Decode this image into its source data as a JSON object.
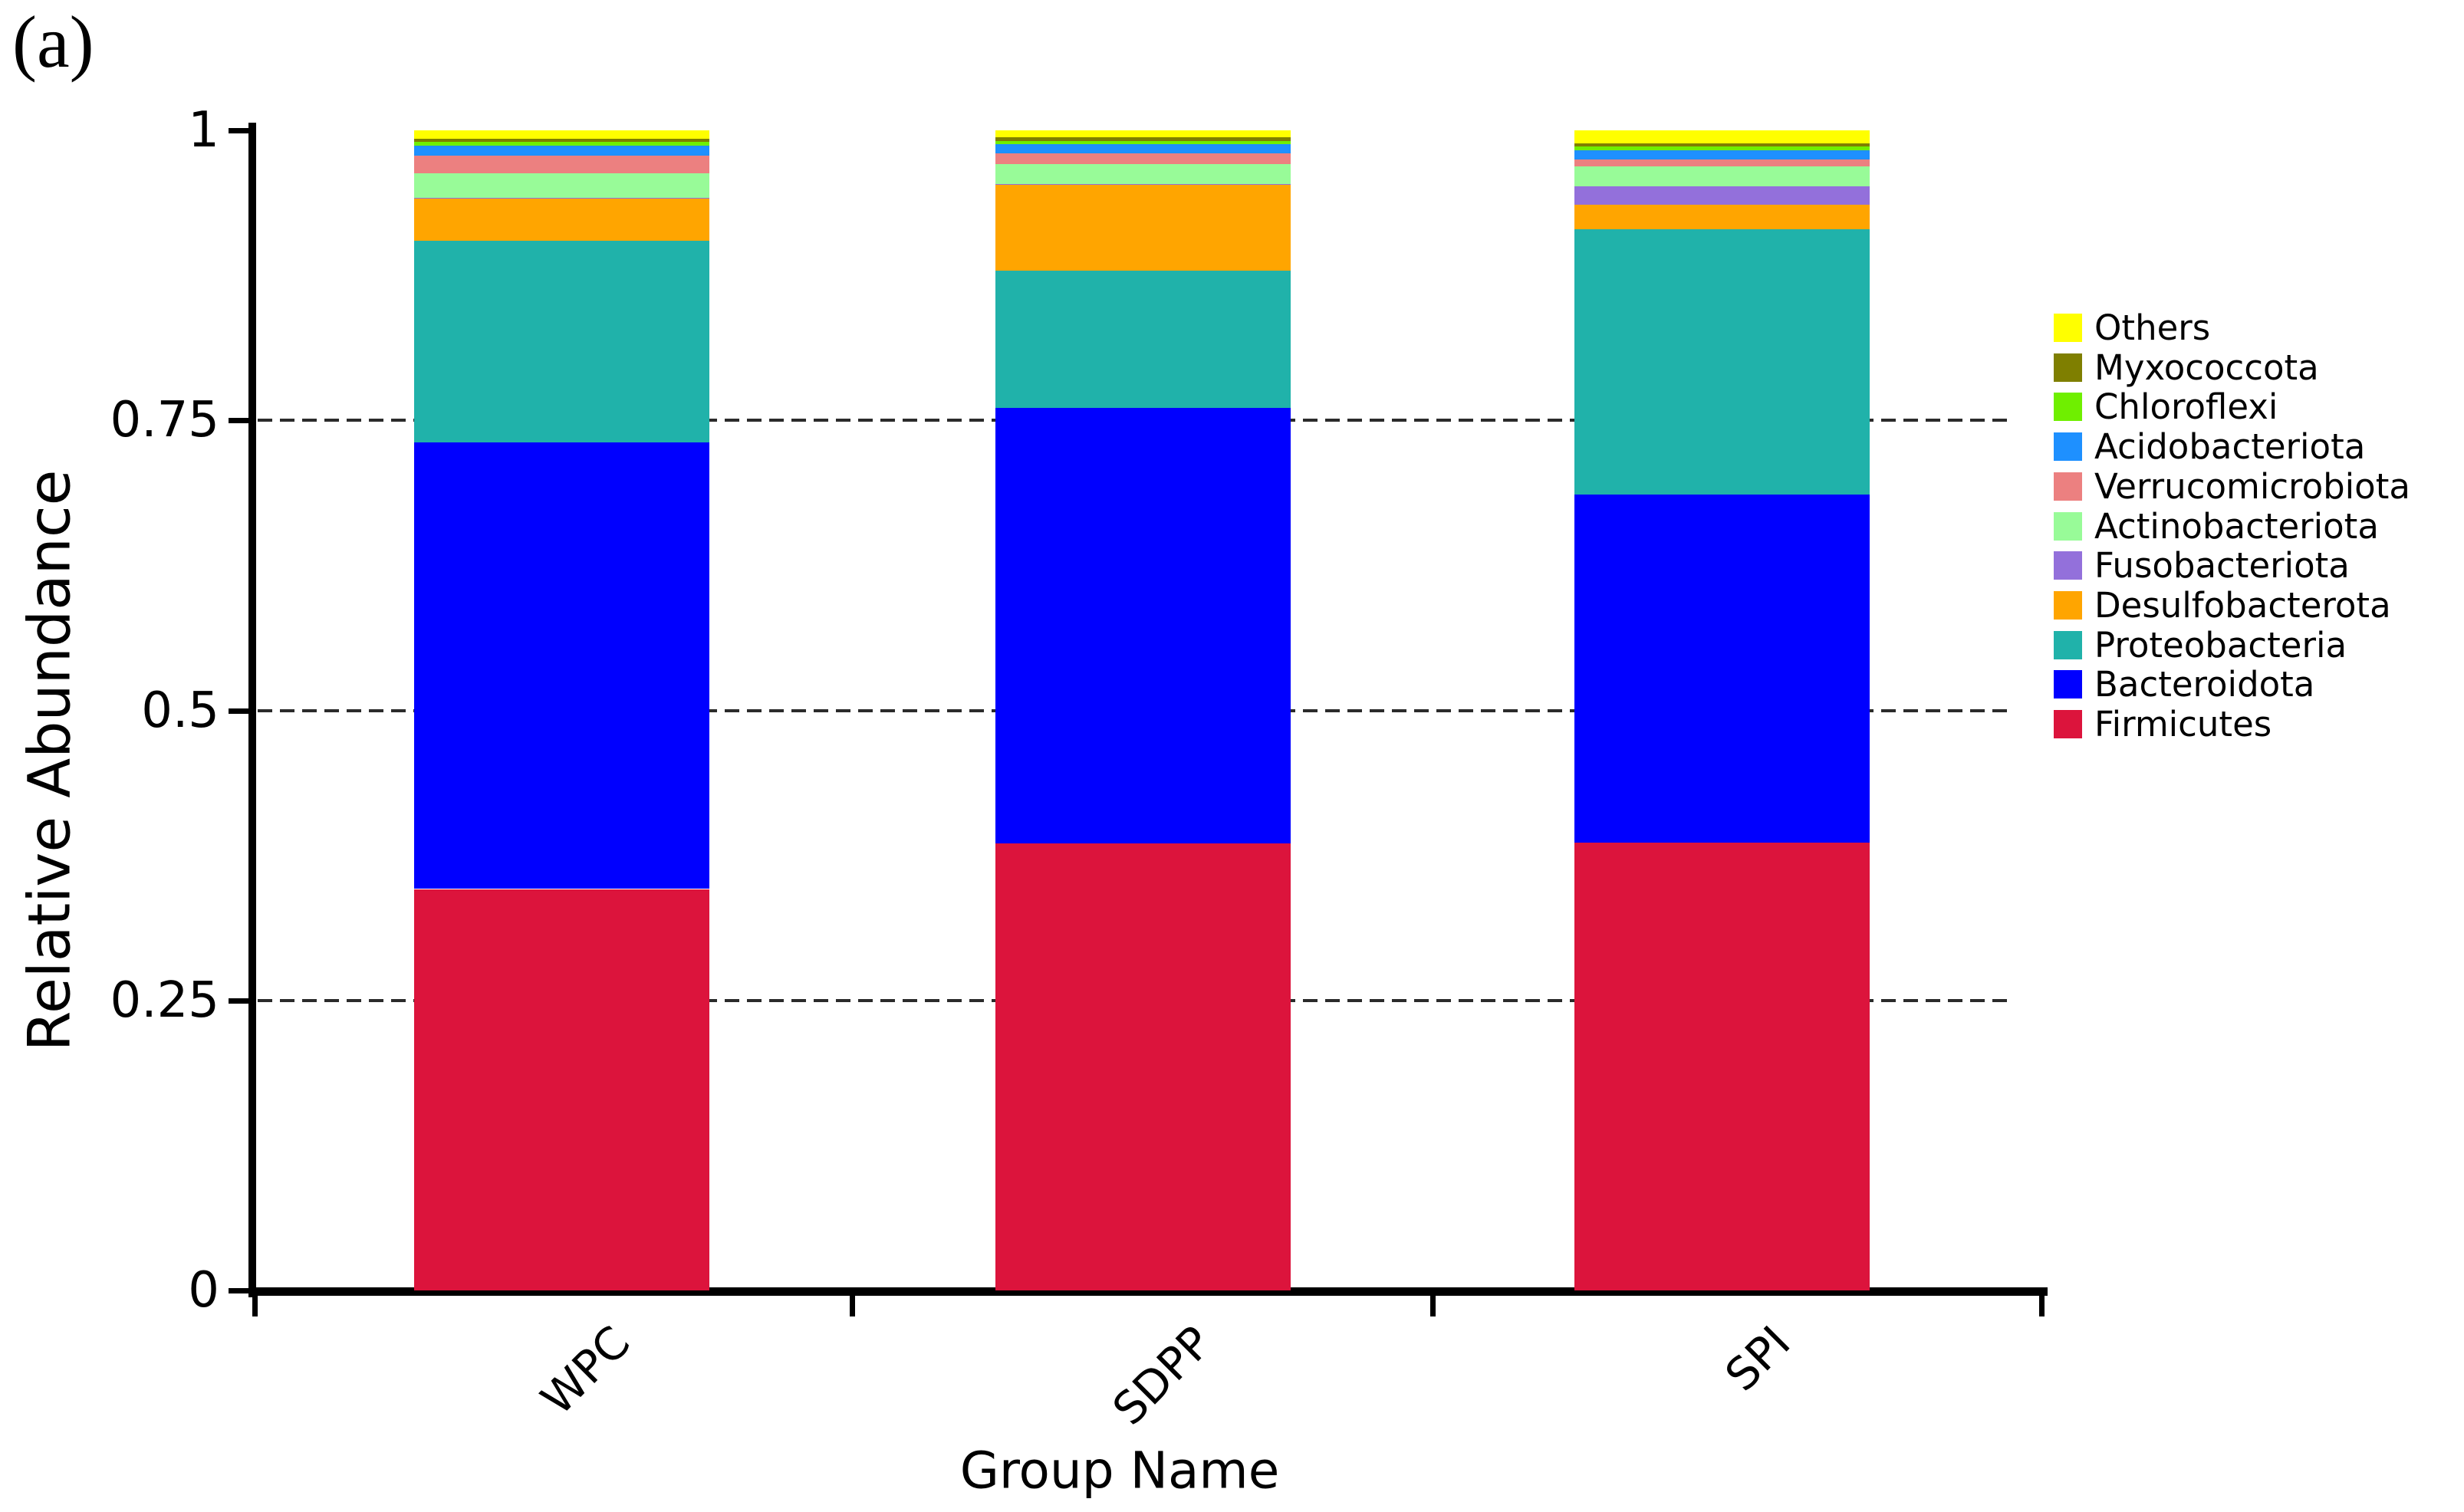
{
  "panel_label": "(a)",
  "chart_data": {
    "type": "bar",
    "variant": "stacked-vertical",
    "title": "",
    "xlabel": "Group Name",
    "ylabel": "Relative Abundance",
    "categories": [
      "WPC",
      "SDPP",
      "SPI"
    ],
    "ylim": [
      0,
      1
    ],
    "yticks": [
      {
        "value": 0,
        "label": "0"
      },
      {
        "value": 0.25,
        "label": "0.25"
      },
      {
        "value": 0.5,
        "label": "0.5"
      },
      {
        "value": 0.75,
        "label": "0.75"
      },
      {
        "value": 1,
        "label": "1"
      }
    ],
    "gridlines": {
      "values": [
        0.25,
        0.5,
        0.75
      ],
      "style": "dashed",
      "color": "#2b2b2b"
    },
    "legend_position": "right",
    "legend_order_top_to_bottom": [
      "Others",
      "Myxococcota",
      "Chloroflexi",
      "Acidobacteriota",
      "Verrucomicrobiota",
      "Actinobacteriota",
      "Fusobacteriota",
      "Desulfobacterota",
      "Proteobacteria",
      "Bacteroidota",
      "Firmicutes"
    ],
    "series": [
      {
        "name": "Firmicutes",
        "color": "#DC143C",
        "values": [
          0.346,
          0.385,
          0.386
        ]
      },
      {
        "name": "Bacteroidota",
        "color": "#0000FF",
        "values": [
          0.385,
          0.376,
          0.3
        ]
      },
      {
        "name": "Proteobacteria",
        "color": "#20B2AA",
        "values": [
          0.174,
          0.118,
          0.229
        ]
      },
      {
        "name": "Desulfobacterota",
        "color": "#FFA500",
        "values": [
          0.036,
          0.074,
          0.021
        ]
      },
      {
        "name": "Fusobacteriota",
        "color": "#9370DB",
        "values": [
          0.001,
          0.001,
          0.016
        ]
      },
      {
        "name": "Actinobacteriota",
        "color": "#98FB98",
        "values": [
          0.021,
          0.017,
          0.017
        ]
      },
      {
        "name": "Verrucomicrobiota",
        "color": "#EC8080",
        "values": [
          0.015,
          0.009,
          0.006
        ]
      },
      {
        "name": "Acidobacteriota",
        "color": "#1E90FF",
        "values": [
          0.009,
          0.008,
          0.008
        ]
      },
      {
        "name": "Chloroflexi",
        "color": "#6FEF00",
        "values": [
          0.003,
          0.003,
          0.003
        ]
      },
      {
        "name": "Myxococcota",
        "color": "#7F7F00",
        "values": [
          0.003,
          0.003,
          0.003
        ]
      },
      {
        "name": "Others",
        "color": "#FFFF00",
        "values": [
          0.007,
          0.006,
          0.011
        ]
      }
    ]
  }
}
